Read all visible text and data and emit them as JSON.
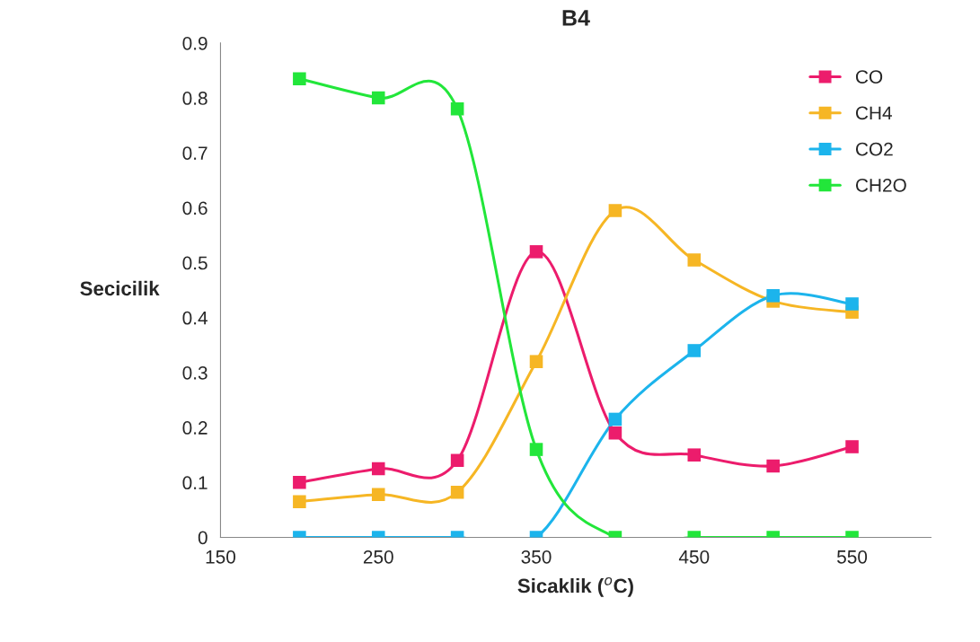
{
  "chart_data": {
    "type": "line",
    "title": "B4",
    "xlabel": "Sicaklik ($^{o}$C)",
    "ylabel": "Secicilik",
    "x": [
      200,
      250,
      300,
      350,
      400,
      450,
      500,
      550
    ],
    "series": [
      {
        "name": "CO",
        "color": "#ec1c6c",
        "values": [
          0.1,
          0.125,
          0.14,
          0.52,
          0.19,
          0.15,
          0.13,
          0.165
        ]
      },
      {
        "name": "CH4",
        "color": "#f6b624",
        "values": [
          0.065,
          0.078,
          0.082,
          0.32,
          0.595,
          0.505,
          0.43,
          0.41
        ]
      },
      {
        "name": "CO2",
        "color": "#1cb4ec",
        "values": [
          0,
          0,
          0,
          0,
          0.215,
          0.34,
          0.44,
          0.425
        ]
      },
      {
        "name": "CH2O",
        "color": "#22e63a",
        "values": [
          0.835,
          0.8,
          0.78,
          0.16,
          0,
          0,
          0,
          0
        ]
      }
    ],
    "xlim": [
      150,
      600
    ],
    "xticks": [
      150,
      250,
      350,
      450,
      550
    ],
    "ylim": [
      0,
      0.9
    ],
    "yticks": [
      0,
      0.1,
      0.2,
      0.3,
      0.4,
      0.5,
      0.6,
      0.7,
      0.8,
      0.9
    ],
    "marker": "square",
    "line_style": "solid",
    "grid": false,
    "legend": "top right"
  }
}
